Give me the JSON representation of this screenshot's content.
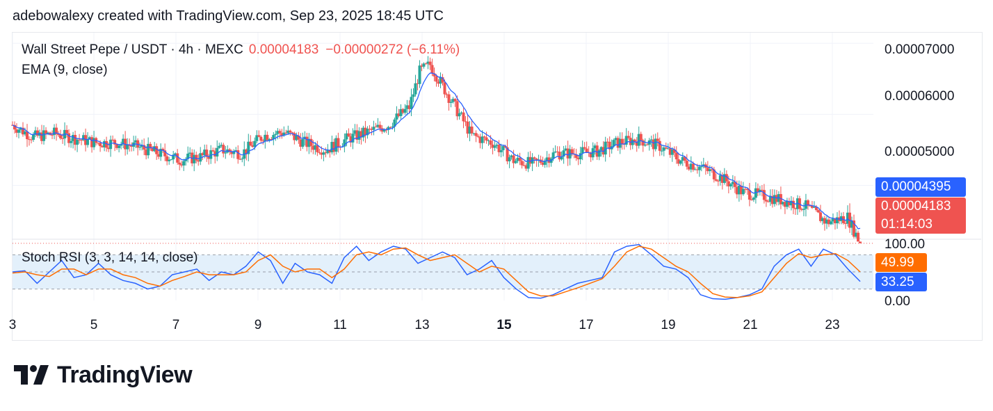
{
  "header": {
    "caption": "adebowalexy created with TradingView.com, Sep 23, 2025 18:45 UTC"
  },
  "legend": {
    "symbol": "Wall Street Pepe / USDT · 4h · MEXC",
    "price": "0.00004183",
    "change": "−0.00000272 (−6.11%)",
    "ema": "EMA (9, close)",
    "stoch": "Stoch RSI (3, 3, 14, 14, close)"
  },
  "price_scale": [
    "0.00007000",
    "0.00006000",
    "0.00005000"
  ],
  "stoch_scale": [
    "100.00",
    "0.00"
  ],
  "tags": {
    "ema": "0.00004395",
    "last_price": "0.00004183",
    "countdown": "01:14:03",
    "stoch_d": "49.99",
    "stoch_k": "33.25"
  },
  "colors": {
    "up": "#26a69a",
    "down": "#ef5350",
    "ema": "#2962ff",
    "k_line": "#2962ff",
    "d_line": "#ff6d00",
    "band": "#e3f0fb"
  },
  "logo": {
    "text": "TradingView",
    "icon": "tradingview-logo-icon"
  },
  "chart_data": [
    {
      "type": "candlestick",
      "title": "Wall Street Pepe / USDT · 4h · MEXC",
      "x_tick_labels": [
        "3",
        "5",
        "7",
        "9",
        "11",
        "13",
        "15",
        "17",
        "19",
        "21",
        "23"
      ],
      "ylim": [
        4.25e-05,
        7.15e-05
      ],
      "y_tick_labels": [
        "0.00007000",
        "0.00006000",
        "0.00005000"
      ],
      "last_price": 4.183e-05,
      "ema_last": 4.395e-05,
      "close_anchors": [
        [
          0,
          5.85e-05
        ],
        [
          10,
          5.68e-05
        ],
        [
          20,
          5.73e-05
        ],
        [
          30,
          5.66e-05
        ],
        [
          40,
          5.6e-05
        ],
        [
          50,
          5.6e-05
        ],
        [
          60,
          5.54e-05
        ],
        [
          70,
          5.45e-05
        ],
        [
          80,
          5.36e-05
        ],
        [
          90,
          5.4e-05
        ],
        [
          100,
          5.5e-05
        ],
        [
          110,
          5.45e-05
        ],
        [
          120,
          5.7e-05
        ],
        [
          130,
          5.75e-05
        ],
        [
          140,
          5.6e-05
        ],
        [
          150,
          5.5e-05
        ],
        [
          160,
          5.65e-05
        ],
        [
          170,
          5.75e-05
        ],
        [
          180,
          5.85e-05
        ],
        [
          190,
          6.1e-05
        ],
        [
          195,
          6.6e-05
        ],
        [
          200,
          6.7e-05
        ],
        [
          210,
          6.2e-05
        ],
        [
          220,
          5.7e-05
        ],
        [
          230,
          5.6e-05
        ],
        [
          240,
          5.35e-05
        ],
        [
          250,
          5.3e-05
        ],
        [
          260,
          5.45e-05
        ],
        [
          270,
          5.45e-05
        ],
        [
          280,
          5.48e-05
        ],
        [
          290,
          5.6e-05
        ],
        [
          300,
          5.65e-05
        ],
        [
          310,
          5.55e-05
        ],
        [
          320,
          5.35e-05
        ],
        [
          330,
          5.25e-05
        ],
        [
          340,
          5.1e-05
        ],
        [
          350,
          4.9e-05
        ],
        [
          360,
          4.85e-05
        ],
        [
          370,
          4.78e-05
        ],
        [
          380,
          4.7e-05
        ],
        [
          390,
          4.48e-05
        ],
        [
          400,
          4.55e-05
        ],
        [
          406,
          4.18e-05
        ]
      ],
      "num_candles": 407
    },
    {
      "type": "line",
      "title": "Stoch RSI (3, 3, 14, 14, close)",
      "ylim": [
        0,
        100
      ],
      "y_tick_labels": [
        "100.00",
        "0.00"
      ],
      "bands": [
        20,
        50,
        80
      ],
      "series": [
        {
          "name": "K",
          "values": [
            50,
            52,
            30,
            50,
            70,
            40,
            45,
            65,
            45,
            35,
            30,
            20,
            25,
            45,
            50,
            55,
            35,
            50,
            45,
            60,
            85,
            70,
            30,
            65,
            50,
            45,
            30,
            75,
            95,
            70,
            85,
            95,
            90,
            65,
            75,
            85,
            75,
            45,
            55,
            70,
            40,
            20,
            5,
            4,
            10,
            20,
            30,
            35,
            40,
            85,
            95,
            98,
            80,
            60,
            55,
            40,
            10,
            3,
            2,
            5,
            10,
            20,
            60,
            80,
            90,
            60,
            90,
            80,
            55,
            33.25
          ]
        },
        {
          "name": "D",
          "values": [
            48,
            50,
            45,
            42,
            55,
            55,
            45,
            55,
            55,
            45,
            40,
            30,
            25,
            35,
            42,
            50,
            45,
            45,
            45,
            50,
            70,
            80,
            60,
            50,
            55,
            55,
            40,
            55,
            80,
            85,
            80,
            90,
            92,
            80,
            70,
            75,
            80,
            65,
            50,
            60,
            55,
            35,
            15,
            8,
            8,
            15,
            22,
            30,
            38,
            60,
            85,
            95,
            90,
            75,
            60,
            50,
            30,
            12,
            6,
            5,
            8,
            15,
            40,
            65,
            82,
            75,
            80,
            82,
            70,
            49.99
          ]
        }
      ]
    }
  ]
}
